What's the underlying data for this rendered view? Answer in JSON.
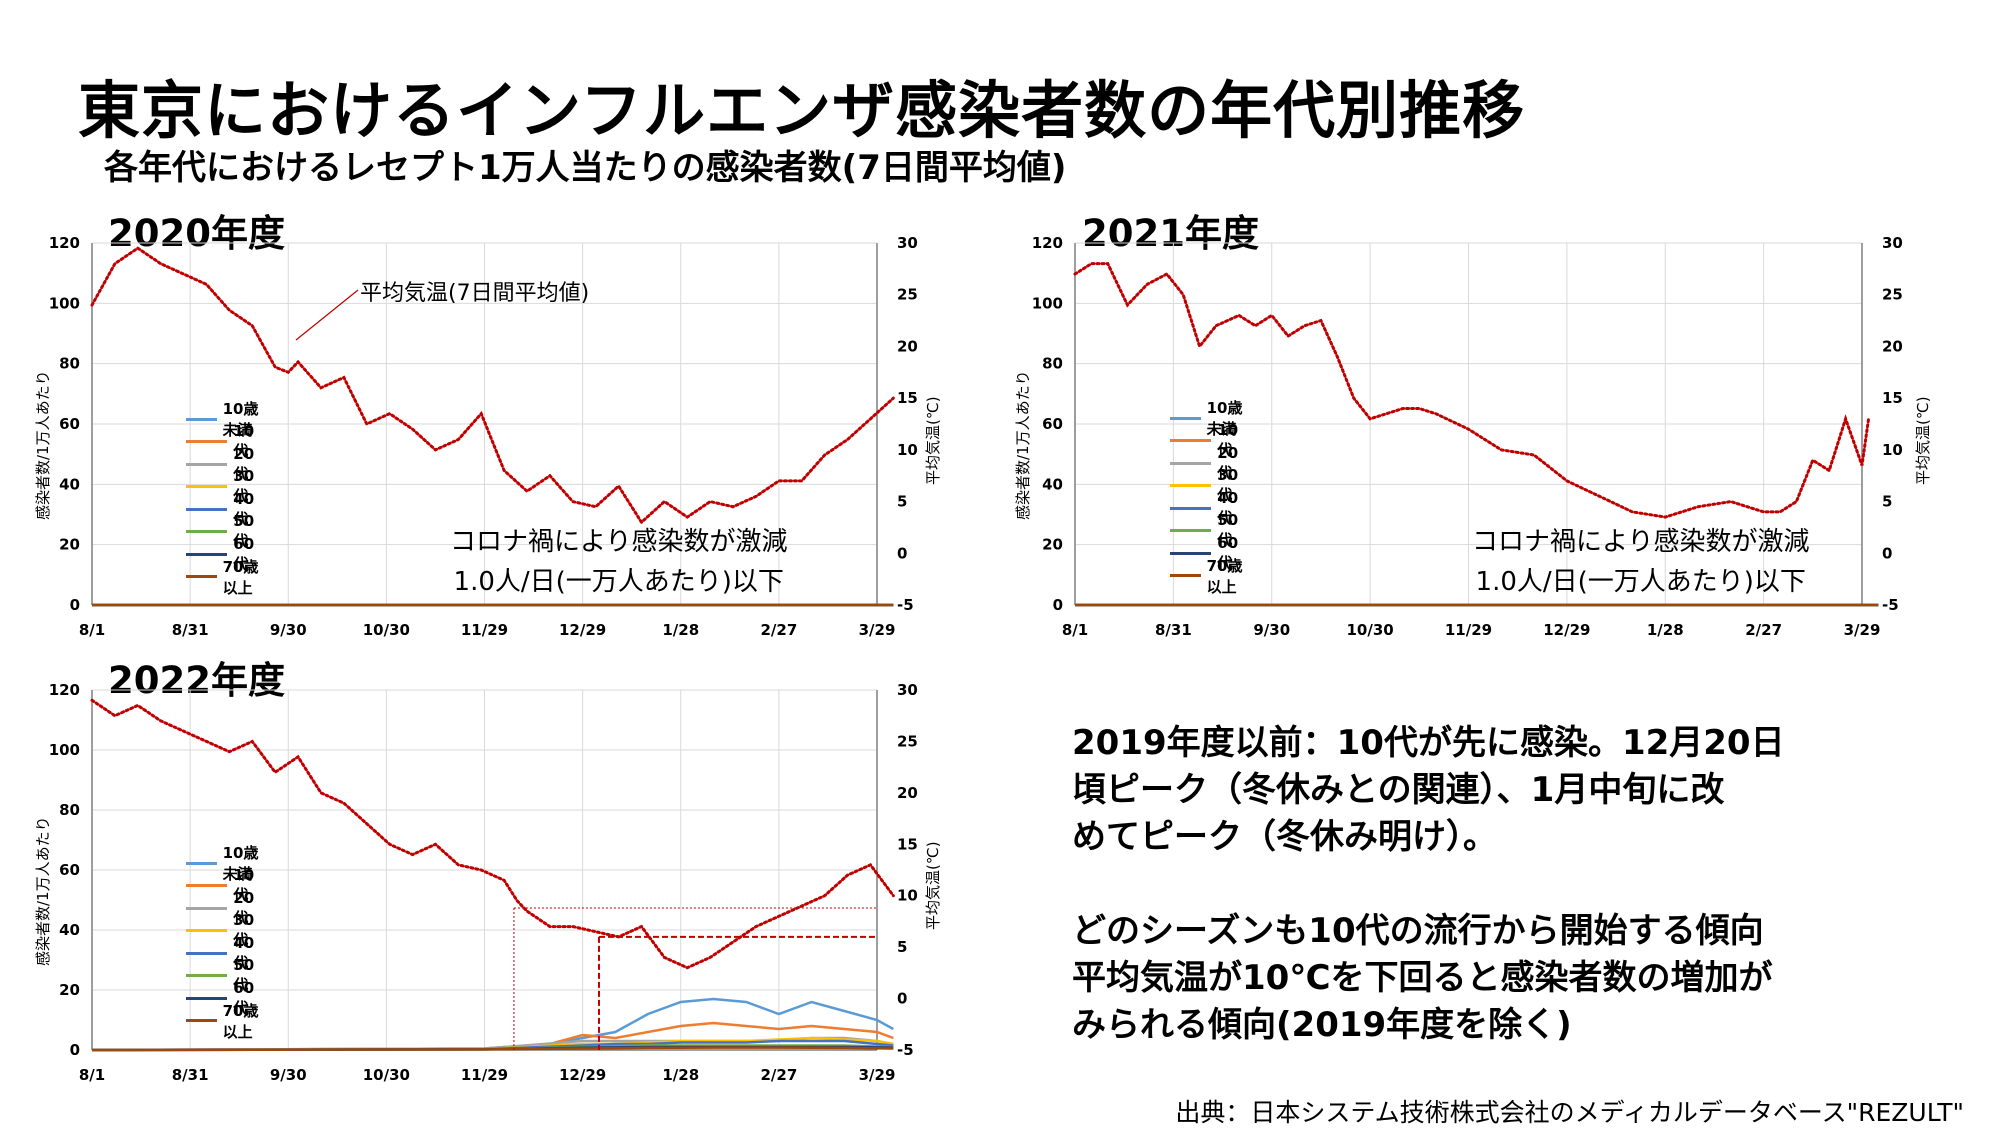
{
  "title": "東京におけるインフルエンザ感染者数の年代別推移",
  "subtitle": "各年代におけるレセプト1万人当たりの感染者数(7日間平均値)",
  "source": "出典：日本システム技術株式会社のメディカルデータベース\"REZULT\"",
  "findings": {
    "para1": [
      "2019年度以前：10代が先に感染。12月20日",
      "頃ピーク（冬休みとの関連）、1月中旬に改",
      "めてピーク（冬休み明け）。"
    ],
    "para2": [
      "どのシーズンも10代の流行から開始する傾向",
      "平均気温が10℃を下回ると感染者数の増加が",
      "みられる傾向(2019年度を除く)"
    ]
  },
  "legend": {
    "labels": [
      "10歳未満",
      "10代",
      "20代",
      "30代",
      "40代",
      "50代",
      "60代",
      "70歳以上"
    ],
    "colors": [
      "#5B9BD5",
      "#ED7D31",
      "#A5A5A5",
      "#FFC000",
      "#4472C4",
      "#70AD47",
      "#264478",
      "#9E480E"
    ]
  },
  "annotations": {
    "temp_callout": "平均気温(7日間平均値)",
    "note_line1": "コロナ禍により感染数が激減",
    "note_line2": "1.0人/日(一万人あたり)以下"
  },
  "colors": {
    "temperature": "#C00000",
    "grid": "#D9D9D9"
  },
  "chart_data": [
    {
      "type": "line",
      "title": "2020年度",
      "x_ticks": [
        "8/1",
        "8/31",
        "9/30",
        "10/30",
        "11/29",
        "12/29",
        "1/28",
        "2/27",
        "3/29"
      ],
      "y_left": {
        "label": "感染者数/1万人あたり",
        "ticks": [
          0,
          20,
          40,
          60,
          80,
          100,
          120
        ],
        "range": [
          0,
          120
        ]
      },
      "y_right": {
        "label": "平均気温(℃)",
        "ticks": [
          -5,
          0,
          5,
          10,
          15,
          20,
          25,
          30
        ],
        "range": [
          -5,
          30
        ]
      },
      "grid": true,
      "legend_position": "left-middle",
      "series": [
        {
          "name": "平均気温(7日間平均値)",
          "axis": "right",
          "x": [
            0,
            7,
            14,
            21,
            28,
            35,
            42,
            49,
            56,
            60,
            63,
            70,
            77,
            84,
            91,
            98,
            105,
            112,
            119,
            126,
            133,
            140,
            147,
            154,
            161,
            168,
            175,
            182,
            189,
            196,
            203,
            210,
            217,
            224,
            231,
            238,
            245
          ],
          "y": [
            24,
            28,
            29.5,
            28,
            27,
            26,
            23.5,
            22,
            18,
            17.5,
            18.5,
            16,
            17,
            12.5,
            13.5,
            12,
            10,
            11,
            13.5,
            8,
            6,
            7.5,
            5,
            4.5,
            6.5,
            3,
            5,
            3.5,
            5,
            4.5,
            5.5,
            7,
            7,
            9.5,
            11,
            13,
            15
          ]
        }
      ]
    },
    {
      "type": "line",
      "title": "2021年度",
      "x_ticks": [
        "8/1",
        "8/31",
        "9/30",
        "10/30",
        "11/29",
        "12/29",
        "1/28",
        "2/27",
        "3/29"
      ],
      "y_left": {
        "label": "感染者数/1万人あたり",
        "ticks": [
          0,
          20,
          40,
          60,
          80,
          100,
          120
        ],
        "range": [
          0,
          120
        ]
      },
      "y_right": {
        "label": "平均気温(℃)",
        "ticks": [
          -5,
          0,
          5,
          10,
          15,
          20,
          25,
          30
        ],
        "range": [
          -5,
          30
        ]
      },
      "grid": true,
      "legend_position": "left-middle",
      "series": [
        {
          "name": "平均気温(7日間平均値)",
          "axis": "right",
          "x": [
            0,
            5,
            10,
            16,
            22,
            28,
            33,
            38,
            43,
            50,
            55,
            60,
            65,
            70,
            75,
            80,
            85,
            90,
            95,
            100,
            105,
            110,
            120,
            130,
            140,
            150,
            160,
            170,
            180,
            190,
            200,
            210,
            215,
            220,
            225,
            230,
            235,
            240,
            242
          ],
          "y": [
            27,
            28,
            28,
            24,
            26,
            27,
            25,
            20,
            22,
            23,
            22,
            23,
            21,
            22,
            22.5,
            19,
            15,
            13,
            13.5,
            14,
            14,
            13.5,
            12,
            10,
            9.5,
            7,
            5.5,
            4,
            3.5,
            4.5,
            5,
            4,
            4,
            5,
            9,
            8,
            13,
            8.5,
            13
          ]
        }
      ]
    },
    {
      "type": "line",
      "title": "2022年度",
      "x_ticks": [
        "8/1",
        "8/31",
        "9/30",
        "10/30",
        "11/29",
        "12/29",
        "1/28",
        "2/27",
        "3/29"
      ],
      "y_left": {
        "label": "感染者数/1万人あたり",
        "ticks": [
          0,
          20,
          40,
          60,
          80,
          100,
          120
        ],
        "range": [
          0,
          120
        ]
      },
      "y_right": {
        "label": "平均気温(℃)",
        "ticks": [
          -5,
          0,
          5,
          10,
          15,
          20,
          25,
          30
        ],
        "range": [
          -5,
          30
        ]
      },
      "grid": true,
      "legend_position": "left-middle",
      "series": [
        {
          "name": "平均気温(7日間平均値)",
          "axis": "right",
          "x": [
            0,
            7,
            14,
            21,
            28,
            35,
            42,
            49,
            56,
            63,
            70,
            77,
            84,
            91,
            98,
            105,
            112,
            119,
            126,
            130,
            133,
            140,
            147,
            154,
            161,
            168,
            175,
            182,
            189,
            196,
            203,
            210,
            217,
            224,
            231,
            238,
            245
          ],
          "y": [
            29,
            27.5,
            28.5,
            27,
            26,
            25,
            24,
            25,
            22,
            23.5,
            20,
            19,
            17,
            15,
            14,
            15,
            13,
            12.5,
            11.5,
            9.5,
            8.5,
            7,
            7,
            6.5,
            6,
            7,
            4,
            3,
            4,
            5.5,
            7,
            8,
            9,
            10,
            12,
            13,
            10
          ]
        },
        {
          "name": "10歳未満",
          "axis": "left",
          "x": [
            0,
            120,
            140,
            150,
            160,
            170,
            180,
            190,
            200,
            210,
            220,
            230,
            240,
            245
          ],
          "y": [
            0,
            0.5,
            2,
            4,
            6,
            12,
            16,
            17,
            16,
            12,
            16,
            13,
            10,
            7
          ]
        },
        {
          "name": "10代",
          "axis": "left",
          "x": [
            0,
            120,
            140,
            150,
            160,
            170,
            180,
            190,
            200,
            210,
            220,
            230,
            240,
            245
          ],
          "y": [
            0,
            0.5,
            2,
            5,
            4,
            6,
            8,
            9,
            8,
            7,
            8,
            7,
            6,
            4
          ]
        },
        {
          "name": "20代",
          "axis": "left",
          "x": [
            0,
            120,
            150,
            160,
            170,
            180,
            190,
            200,
            210,
            220,
            230,
            240,
            245
          ],
          "y": [
            0,
            0.5,
            3,
            3,
            3,
            3,
            3,
            3,
            3,
            4,
            4,
            3,
            2
          ]
        },
        {
          "name": "30代",
          "axis": "left",
          "x": [
            0,
            120,
            150,
            160,
            170,
            180,
            190,
            200,
            210,
            220,
            230,
            240,
            245
          ],
          "y": [
            0,
            0.3,
            2,
            2,
            2.5,
            3,
            3,
            3,
            3.5,
            4,
            3.5,
            3,
            2
          ]
        },
        {
          "name": "40代",
          "axis": "left",
          "x": [
            0,
            120,
            150,
            160,
            170,
            180,
            190,
            200,
            210,
            220,
            230,
            240,
            245
          ],
          "y": [
            0,
            0.3,
            1.5,
            2,
            2,
            2.5,
            2.5,
            2.5,
            3,
            3,
            3,
            2,
            1.5
          ]
        },
        {
          "name": "50代",
          "axis": "left",
          "x": [
            0,
            120,
            150,
            170,
            190,
            210,
            230,
            245
          ],
          "y": [
            0,
            0.2,
            1,
            1.5,
            1.5,
            1.5,
            1.5,
            1
          ]
        },
        {
          "name": "60代",
          "axis": "left",
          "x": [
            0,
            120,
            150,
            170,
            190,
            210,
            230,
            245
          ],
          "y": [
            0,
            0.2,
            0.8,
            1,
            1,
            1,
            1,
            0.8
          ]
        },
        {
          "name": "70歳以上",
          "axis": "left",
          "x": [
            0,
            120,
            150,
            170,
            190,
            210,
            230,
            245
          ],
          "y": [
            0,
            0.2,
            0.5,
            0.7,
            0.8,
            0.8,
            0.7,
            0.5
          ]
        }
      ]
    }
  ]
}
